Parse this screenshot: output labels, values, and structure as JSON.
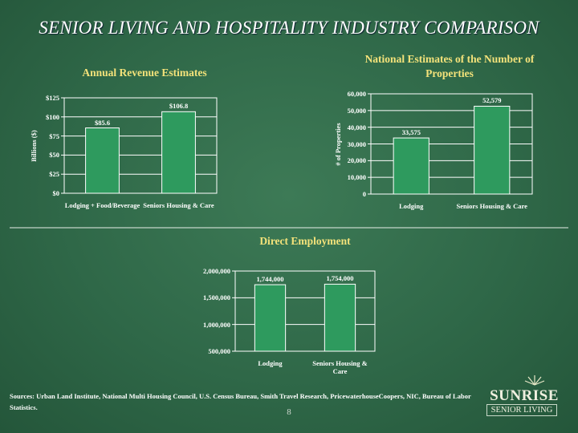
{
  "title": "SENIOR LIVING AND HOSPITALITY INDUSTRY COMPARISON",
  "chart_data": [
    {
      "type": "bar",
      "title": "Annual Revenue Estimates",
      "y_label": "Billions ($)",
      "categories": [
        "Lodging + Food/Beverage",
        "Seniors Housing & Care"
      ],
      "values": [
        85.6,
        106.8
      ],
      "value_labels": [
        "$85.6",
        "$106.8"
      ],
      "color": "#2e9a5e",
      "ylim": [
        0,
        125
      ],
      "yticks": [
        {
          "value": 0,
          "label": "$0"
        },
        {
          "value": 25,
          "label": "$25"
        },
        {
          "value": 50,
          "label": "$50"
        },
        {
          "value": 75,
          "label": "$75"
        },
        {
          "value": 100,
          "label": "$100"
        },
        {
          "value": 125,
          "label": "$125"
        }
      ],
      "grid": true
    },
    {
      "type": "bar",
      "title": "National Estimates of the Number of Properties",
      "y_label": "# of Properties",
      "categories": [
        "Lodging",
        "Seniors Housing & Care"
      ],
      "values": [
        33575,
        52579
      ],
      "value_labels": [
        "33,575",
        "52,579"
      ],
      "color": "#2e9a5e",
      "ylim": [
        0,
        60000
      ],
      "yticks": [
        0,
        {
          "value": 10000,
          "label": "10,000"
        },
        {
          "value": 20000,
          "label": "20,000"
        },
        {
          "value": 30000,
          "label": "30,000"
        },
        {
          "value": 40000,
          "label": "40,000"
        },
        {
          "value": 50000,
          "label": "50,000"
        },
        {
          "value": 60000,
          "label": "60,000"
        }
      ],
      "grid": true
    },
    {
      "type": "bar",
      "title": "Direct Employment",
      "categories": [
        "Lodging",
        "Seniors Housing & Care"
      ],
      "values": [
        1744000,
        1754000
      ],
      "value_labels": [
        "1,744,000",
        "1,754,000"
      ],
      "color": "#2e9a5e",
      "ylim": [
        500000,
        2000000
      ],
      "yticks": [
        {
          "value": 500000,
          "label": "500,000"
        },
        {
          "value": 1000000,
          "label": "1,000,000"
        },
        {
          "value": 1500000,
          "label": "1,500,000"
        },
        {
          "value": 2000000,
          "label": "2,000,000"
        }
      ],
      "grid": true
    }
  ],
  "sources": "Sources:  Urban Land Institute, National Multi Housing Council, U.S. Census Bureau, Smith Travel Research, PricewaterhouseCoopers, NIC, Bureau of Labor Statistics.",
  "page_number": "8",
  "logo": {
    "name": "SUNRISE",
    "tagline": "SENIOR LIVING"
  }
}
